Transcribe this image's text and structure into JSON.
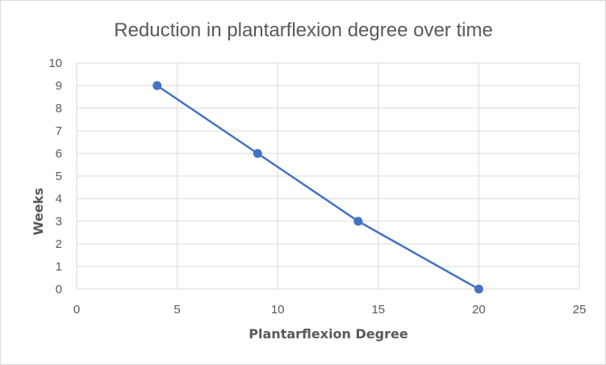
{
  "chart_data": {
    "type": "line",
    "title": "Reduction in plantarflexion degree over time",
    "xlabel": "Plantarflexion Degree",
    "ylabel": "Weeks",
    "xlim": [
      0,
      25
    ],
    "ylim": [
      0,
      10
    ],
    "xticks": [
      0,
      5,
      10,
      15,
      20,
      25
    ],
    "yticks": [
      0,
      1,
      2,
      3,
      4,
      5,
      6,
      7,
      8,
      9,
      10
    ],
    "grid": true,
    "legend": "none",
    "series": [
      {
        "color": "#4472c4",
        "points": [
          {
            "x": 4,
            "y": 9
          },
          {
            "x": 9,
            "y": 6
          },
          {
            "x": 14,
            "y": 3
          },
          {
            "x": 20,
            "y": 0
          }
        ]
      }
    ]
  }
}
